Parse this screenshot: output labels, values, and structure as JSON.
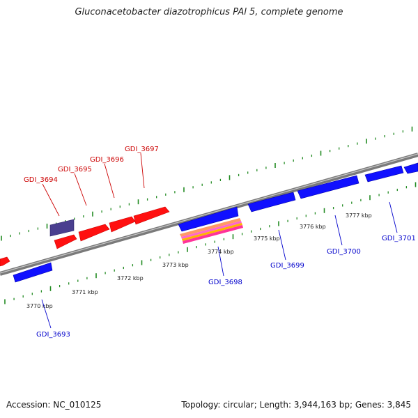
{
  "title": "Gluconacetobacter diazotrophicus PAl 5, complete genome",
  "footer": {
    "accession_label": "Accession:",
    "accession": "NC_010125",
    "topology_label": "Topology:",
    "topology": "circular",
    "length_label": "Length:",
    "length": "3,944,163 bp",
    "genes_label": "Genes:",
    "genes": "3,845"
  },
  "colors": {
    "forward_gene": "#ff0000",
    "reverse_gene": "#0000ff",
    "other_gene": "#4a3f8f",
    "rna_stripes": [
      "#ff9966",
      "#ff66cc",
      "#ffb300",
      "#ff3399"
    ],
    "tick": "#228b22",
    "backbone": "#808080",
    "forward_label": "#cc0000",
    "reverse_label": "#0000cc"
  },
  "scale_labels": [
    "3770 kbp",
    "3771 kbp",
    "3772 kbp",
    "3773 kbp",
    "3774 kbp",
    "3775 kbp",
    "3776 kbp",
    "3777 kbp"
  ],
  "forward_genes": [
    "GDI_3694",
    "GDI_3695",
    "GDI_3696",
    "GDI_3697"
  ],
  "reverse_genes": [
    "GDI_3693",
    "GDI_3698",
    "GDI_3699",
    "GDI_3700",
    "GDI_3701"
  ]
}
